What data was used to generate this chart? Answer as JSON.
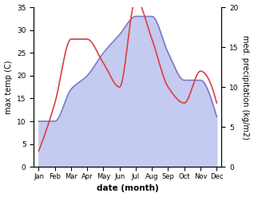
{
  "months": [
    "Jan",
    "Feb",
    "Mar",
    "Apr",
    "May",
    "Jun",
    "Jul",
    "Aug",
    "Sep",
    "Oct",
    "Nov",
    "Dec"
  ],
  "month_positions": [
    0,
    1,
    2,
    3,
    4,
    5,
    6,
    7,
    8,
    9,
    10,
    11
  ],
  "temperature": [
    10,
    10,
    17,
    20,
    25,
    29,
    33,
    33,
    25,
    19,
    19,
    11
  ],
  "precipitation": [
    2,
    8,
    16,
    16,
    13,
    10,
    21,
    16,
    10,
    8,
    12,
    8
  ],
  "temp_color": "#7b7bc8",
  "temp_fill_color": "#c5caf0",
  "precip_color": "#d94040",
  "ylabel_left": "max temp (C)",
  "ylabel_right": "med. precipitation (kg/m2)",
  "xlabel": "date (month)",
  "ylim_left": [
    0,
    35
  ],
  "ylim_right": [
    0,
    20
  ],
  "background_color": "#ffffff"
}
